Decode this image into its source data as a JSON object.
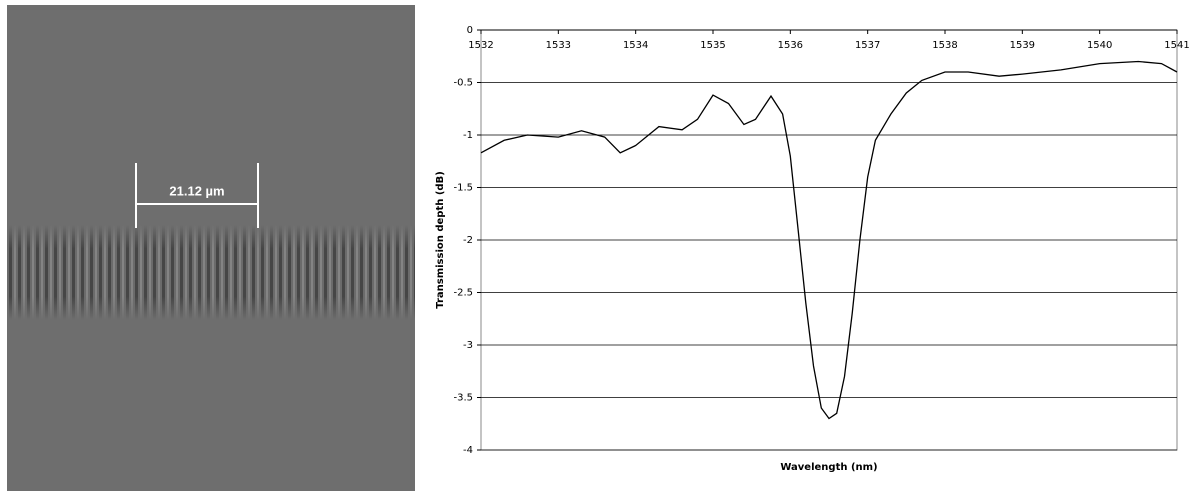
{
  "image": {
    "scale_label": "21.12 µm"
  },
  "chart_data": {
    "type": "line",
    "xlabel": "Wavelength (nm)",
    "ylabel": "Transmission depth (dB)",
    "x": [
      1532,
      1532.3,
      1532.6,
      1533.0,
      1533.3,
      1533.6,
      1533.8,
      1534.0,
      1534.3,
      1534.6,
      1534.8,
      1535.0,
      1535.2,
      1535.4,
      1535.55,
      1535.75,
      1535.9,
      1536.0,
      1536.1,
      1536.2,
      1536.3,
      1536.4,
      1536.5,
      1536.6,
      1536.7,
      1536.8,
      1536.9,
      1537.0,
      1537.1,
      1537.3,
      1537.5,
      1537.7,
      1538.0,
      1538.3,
      1538.7,
      1539.0,
      1539.5,
      1540.0,
      1540.5,
      1540.8,
      1541.0
    ],
    "values": [
      -1.17,
      -1.05,
      -1.0,
      -1.02,
      -0.96,
      -1.02,
      -1.17,
      -1.1,
      -0.92,
      -0.95,
      -0.85,
      -0.62,
      -0.7,
      -0.9,
      -0.85,
      -0.63,
      -0.8,
      -1.2,
      -1.9,
      -2.6,
      -3.2,
      -3.6,
      -3.7,
      -3.65,
      -3.3,
      -2.7,
      -2.0,
      -1.4,
      -1.05,
      -0.8,
      -0.6,
      -0.48,
      -0.4,
      -0.4,
      -0.44,
      -0.42,
      -0.38,
      -0.32,
      -0.3,
      -0.32,
      -0.4
    ],
    "color": "#000000",
    "xlim": [
      1532,
      1541
    ],
    "xticks": [
      1532,
      1533,
      1534,
      1535,
      1536,
      1537,
      1538,
      1539,
      1540,
      1541
    ],
    "ylim": [
      -4,
      0
    ],
    "yticks": [
      0,
      -0.5,
      -1,
      -1.5,
      -2,
      -2.5,
      -3,
      -3.5,
      -4
    ],
    "grid": true
  }
}
